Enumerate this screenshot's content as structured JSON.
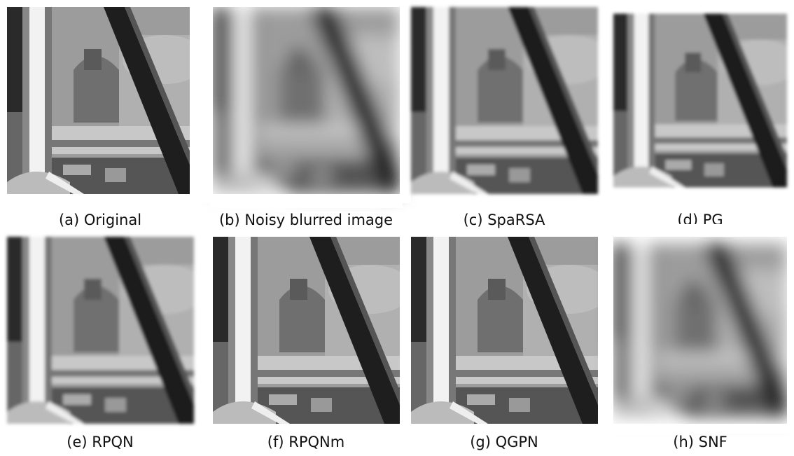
{
  "panels": [
    {
      "label": "(a) Original"
    },
    {
      "label": "(b) Noisy blurred image"
    },
    {
      "label": "(c) SpaRSA"
    },
    {
      "label": "(d) PG"
    },
    {
      "label": "(e) RPQN"
    },
    {
      "label": "(f) RPQNm"
    },
    {
      "label": "(g) QGPN"
    },
    {
      "label": "(h) SNF"
    }
  ]
}
